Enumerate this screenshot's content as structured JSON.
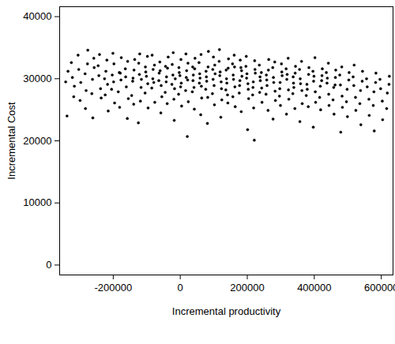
{
  "chart_data": {
    "type": "scatter",
    "xlabel": "Incremental productivity",
    "ylabel": "Incremental Cost",
    "xlim": [
      -360000,
      635000
    ],
    "ylim": [
      -1600,
      41600
    ],
    "xticks": [
      -200000,
      0,
      200000,
      400000,
      600000
    ],
    "yticks": [
      0,
      10000,
      20000,
      30000,
      40000
    ],
    "grid": false,
    "color": "#000000",
    "marker": "circle",
    "points": [
      [
        -342000,
        29500
      ],
      [
        -335000,
        31200
      ],
      [
        -338000,
        24000
      ],
      [
        -322000,
        30200
      ],
      [
        -316000,
        28800
      ],
      [
        -325000,
        32600
      ],
      [
        -318000,
        27100
      ],
      [
        -303000,
        31500
      ],
      [
        -297000,
        29400
      ],
      [
        -305000,
        33800
      ],
      [
        -299000,
        26500
      ],
      [
        -284000,
        30800
      ],
      [
        -277000,
        32400
      ],
      [
        -281000,
        28100
      ],
      [
        -276000,
        34600
      ],
      [
        -283000,
        25200
      ],
      [
        -262000,
        29900
      ],
      [
        -257000,
        31800
      ],
      [
        -264000,
        27600
      ],
      [
        -258000,
        33300
      ],
      [
        -261000,
        23700
      ],
      [
        -243000,
        30500
      ],
      [
        -238000,
        28400
      ],
      [
        -245000,
        32100
      ],
      [
        -236000,
        26900
      ],
      [
        -241000,
        33900
      ],
      [
        -222000,
        31200
      ],
      [
        -217000,
        29100
      ],
      [
        -224000,
        27400
      ],
      [
        -219000,
        33000
      ],
      [
        -215000,
        24800
      ],
      [
        -226000,
        30000
      ],
      [
        -203000,
        30600
      ],
      [
        -198000,
        32400
      ],
      [
        -205000,
        28300
      ],
      [
        -196000,
        26100
      ],
      [
        -201000,
        34100
      ],
      [
        -199000,
        29500
      ],
      [
        -182000,
        31000
      ],
      [
        -177000,
        29800
      ],
      [
        -185000,
        27900
      ],
      [
        -176000,
        33400
      ],
      [
        -181000,
        25400
      ],
      [
        -179000,
        30900
      ],
      [
        -163000,
        30300
      ],
      [
        -157000,
        32800
      ],
      [
        -161000,
        28700
      ],
      [
        -155000,
        26800
      ],
      [
        -164000,
        31600
      ],
      [
        -158000,
        23600
      ],
      [
        -142000,
        29600
      ],
      [
        -138000,
        31400
      ],
      [
        -145000,
        27300
      ],
      [
        -136000,
        33100
      ],
      [
        -141000,
        30100
      ],
      [
        -139000,
        25900
      ],
      [
        -122000,
        30700
      ],
      [
        -117000,
        28600
      ],
      [
        -124000,
        32500
      ],
      [
        -119000,
        26400
      ],
      [
        -116000,
        29900
      ],
      [
        -121000,
        34000
      ],
      [
        -125000,
        22900
      ],
      [
        -103000,
        31100
      ],
      [
        -97000,
        29200
      ],
      [
        -105000,
        27700
      ],
      [
        -98000,
        33600
      ],
      [
        -101000,
        30400
      ],
      [
        -96000,
        25300
      ],
      [
        -104000,
        31900
      ],
      [
        -82000,
        30000
      ],
      [
        -77000,
        32200
      ],
      [
        -85000,
        28500
      ],
      [
        -76000,
        26200
      ],
      [
        -81000,
        31500
      ],
      [
        -79000,
        29400
      ],
      [
        -84000,
        33800
      ],
      [
        -63000,
        30900
      ],
      [
        -57000,
        28900
      ],
      [
        -61000,
        32700
      ],
      [
        -55000,
        27100
      ],
      [
        -64000,
        29700
      ],
      [
        -58000,
        24500
      ],
      [
        -60000,
        31300
      ],
      [
        -42000,
        29500
      ],
      [
        -38000,
        31700
      ],
      [
        -45000,
        27800
      ],
      [
        -36000,
        33500
      ],
      [
        -41000,
        30300
      ],
      [
        -39000,
        26000
      ],
      [
        -44000,
        32000
      ],
      [
        -22000,
        30600
      ],
      [
        -17000,
        28400
      ],
      [
        -24000,
        32300
      ],
      [
        -19000,
        26700
      ],
      [
        -15000,
        30000
      ],
      [
        -21000,
        34200
      ],
      [
        -25000,
        29100
      ],
      [
        -18000,
        23300
      ],
      [
        -3000,
        31000
      ],
      [
        3000,
        29300
      ],
      [
        -5000,
        27500
      ],
      [
        2000,
        33100
      ],
      [
        -1000,
        30500
      ],
      [
        4000,
        25600
      ],
      [
        -4000,
        31800
      ],
      [
        1000,
        28700
      ],
      [
        18000,
        30200
      ],
      [
        23000,
        32500
      ],
      [
        16000,
        28100
      ],
      [
        24000,
        26300
      ],
      [
        19000,
        31300
      ],
      [
        22000,
        29800
      ],
      [
        17000,
        34000
      ],
      [
        21000,
        20700
      ],
      [
        38000,
        29700
      ],
      [
        43000,
        31600
      ],
      [
        36000,
        27900
      ],
      [
        44000,
        33300
      ],
      [
        39000,
        30600
      ],
      [
        42000,
        25100
      ],
      [
        37000,
        31900
      ],
      [
        41000,
        28600
      ],
      [
        58000,
        30800
      ],
      [
        63000,
        28800
      ],
      [
        56000,
        32600
      ],
      [
        64000,
        26900
      ],
      [
        59000,
        30100
      ],
      [
        62000,
        33900
      ],
      [
        57000,
        29300
      ],
      [
        61000,
        24200
      ],
      [
        78000,
        30300
      ],
      [
        83000,
        31900
      ],
      [
        76000,
        28300
      ],
      [
        84000,
        34400
      ],
      [
        79000,
        29600
      ],
      [
        82000,
        27000
      ],
      [
        77000,
        31200
      ],
      [
        81000,
        22800
      ],
      [
        98000,
        29900
      ],
      [
        103000,
        32200
      ],
      [
        96000,
        27600
      ],
      [
        104000,
        30800
      ],
      [
        99000,
        33500
      ],
      [
        102000,
        25800
      ],
      [
        97000,
        31500
      ],
      [
        101000,
        28900
      ],
      [
        118000,
        30500
      ],
      [
        123000,
        28400
      ],
      [
        116000,
        32800
      ],
      [
        124000,
        26600
      ],
      [
        119000,
        31100
      ],
      [
        122000,
        29500
      ],
      [
        117000,
        34700
      ],
      [
        121000,
        23800
      ],
      [
        138000,
        30000
      ],
      [
        143000,
        31700
      ],
      [
        136000,
        28200
      ],
      [
        144000,
        33200
      ],
      [
        139000,
        29300
      ],
      [
        142000,
        26100
      ],
      [
        137000,
        31400
      ],
      [
        141000,
        27400
      ],
      [
        158000,
        30600
      ],
      [
        163000,
        28700
      ],
      [
        156000,
        32400
      ],
      [
        164000,
        25500
      ],
      [
        159000,
        29900
      ],
      [
        162000,
        31900
      ],
      [
        157000,
        27100
      ],
      [
        161000,
        33800
      ],
      [
        178000,
        29700
      ],
      [
        183000,
        31300
      ],
      [
        176000,
        27700
      ],
      [
        184000,
        30400
      ],
      [
        179000,
        33000
      ],
      [
        182000,
        24700
      ],
      [
        177000,
        28900
      ],
      [
        181000,
        31800
      ],
      [
        198000,
        30100
      ],
      [
        203000,
        28300
      ],
      [
        196000,
        32000
      ],
      [
        204000,
        26800
      ],
      [
        199000,
        30800
      ],
      [
        202000,
        29200
      ],
      [
        197000,
        33600
      ],
      [
        201000,
        21800
      ],
      [
        218000,
        29500
      ],
      [
        223000,
        31500
      ],
      [
        216000,
        27400
      ],
      [
        224000,
        30900
      ],
      [
        219000,
        25300
      ],
      [
        222000,
        32900
      ],
      [
        217000,
        28600
      ],
      [
        221000,
        20100
      ],
      [
        238000,
        30300
      ],
      [
        243000,
        28500
      ],
      [
        236000,
        32200
      ],
      [
        244000,
        26200
      ],
      [
        239000,
        29700
      ],
      [
        242000,
        31000
      ],
      [
        237000,
        27800
      ],
      [
        258000,
        29800
      ],
      [
        263000,
        31400
      ],
      [
        256000,
        27500
      ],
      [
        264000,
        33100
      ],
      [
        259000,
        28900
      ],
      [
        262000,
        24900
      ],
      [
        257000,
        30600
      ],
      [
        278000,
        30200
      ],
      [
        283000,
        28000
      ],
      [
        276000,
        31800
      ],
      [
        284000,
        26500
      ],
      [
        279000,
        29400
      ],
      [
        282000,
        32700
      ],
      [
        277000,
        23500
      ],
      [
        298000,
        29400
      ],
      [
        303000,
        31100
      ],
      [
        296000,
        27200
      ],
      [
        304000,
        30500
      ],
      [
        299000,
        25700
      ],
      [
        302000,
        32400
      ],
      [
        297000,
        28400
      ],
      [
        318000,
        29900
      ],
      [
        323000,
        28200
      ],
      [
        316000,
        31600
      ],
      [
        324000,
        26700
      ],
      [
        319000,
        30700
      ],
      [
        322000,
        33300
      ],
      [
        317000,
        24300
      ],
      [
        338000,
        29300
      ],
      [
        343000,
        30900
      ],
      [
        336000,
        27600
      ],
      [
        344000,
        32000
      ],
      [
        339000,
        28600
      ],
      [
        342000,
        25200
      ],
      [
        337000,
        30300
      ],
      [
        358000,
        30000
      ],
      [
        363000,
        28100
      ],
      [
        356000,
        31500
      ],
      [
        364000,
        26000
      ],
      [
        359000,
        29200
      ],
      [
        362000,
        32800
      ],
      [
        357000,
        23100
      ],
      [
        378000,
        29100
      ],
      [
        383000,
        30700
      ],
      [
        376000,
        27300
      ],
      [
        384000,
        31800
      ],
      [
        379000,
        28300
      ],
      [
        382000,
        25500
      ],
      [
        398000,
        29600
      ],
      [
        403000,
        27900
      ],
      [
        396000,
        31200
      ],
      [
        404000,
        26200
      ],
      [
        399000,
        30400
      ],
      [
        402000,
        33400
      ],
      [
        397000,
        22200
      ],
      [
        418000,
        28800
      ],
      [
        423000,
        30500
      ],
      [
        416000,
        27000
      ],
      [
        424000,
        31600
      ],
      [
        419000,
        25000
      ],
      [
        422000,
        29700
      ],
      [
        438000,
        29300
      ],
      [
        443000,
        27500
      ],
      [
        436000,
        31000
      ],
      [
        444000,
        25700
      ],
      [
        439000,
        30100
      ],
      [
        442000,
        32500
      ],
      [
        458000,
        28600
      ],
      [
        463000,
        30200
      ],
      [
        456000,
        26600
      ],
      [
        464000,
        31400
      ],
      [
        459000,
        24300
      ],
      [
        462000,
        29000
      ],
      [
        478000,
        29000
      ],
      [
        483000,
        27200
      ],
      [
        476000,
        30600
      ],
      [
        484000,
        25400
      ],
      [
        479000,
        21400
      ],
      [
        482000,
        31900
      ],
      [
        498000,
        28300
      ],
      [
        503000,
        29800
      ],
      [
        496000,
        26300
      ],
      [
        504000,
        31000
      ],
      [
        499000,
        23900
      ],
      [
        518000,
        28900
      ],
      [
        523000,
        27000
      ],
      [
        516000,
        30300
      ],
      [
        524000,
        24900
      ],
      [
        519000,
        32200
      ],
      [
        538000,
        28100
      ],
      [
        543000,
        29600
      ],
      [
        536000,
        26000
      ],
      [
        544000,
        31200
      ],
      [
        539000,
        22600
      ],
      [
        558000,
        28700
      ],
      [
        563000,
        26700
      ],
      [
        556000,
        30000
      ],
      [
        564000,
        24100
      ],
      [
        578000,
        27900
      ],
      [
        583000,
        29400
      ],
      [
        576000,
        25700
      ],
      [
        584000,
        30900
      ],
      [
        579000,
        21600
      ],
      [
        598000,
        28400
      ],
      [
        603000,
        26400
      ],
      [
        596000,
        29900
      ],
      [
        604000,
        23400
      ],
      [
        618000,
        27700
      ],
      [
        623000,
        29100
      ],
      [
        616000,
        25200
      ],
      [
        624000,
        30400
      ]
    ]
  }
}
